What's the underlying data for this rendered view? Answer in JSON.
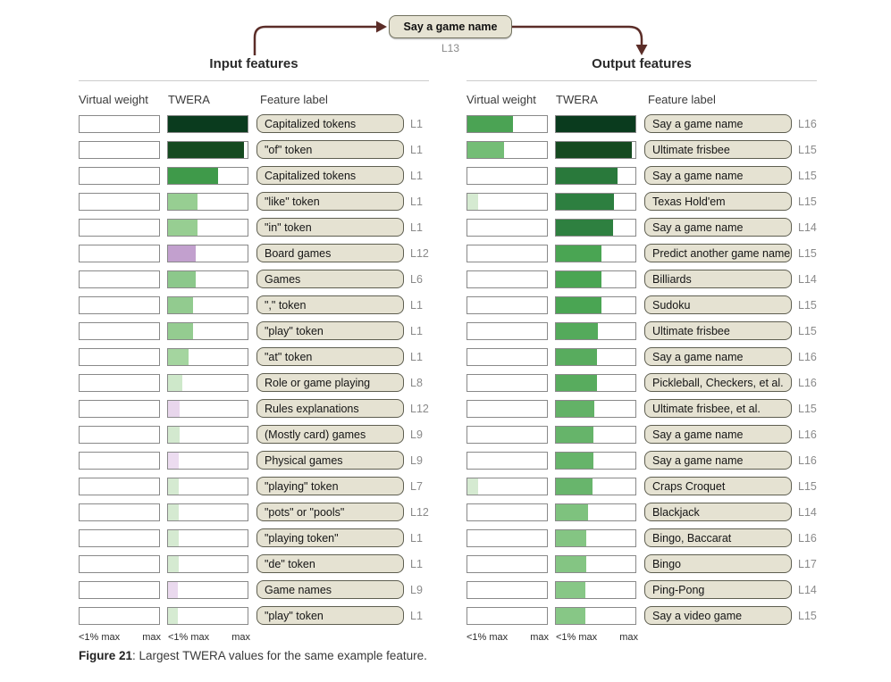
{
  "node": {
    "label": "Say a game name",
    "layer": "L13"
  },
  "headers": {
    "virtual_weight": "Virtual weight",
    "twera": "TWERA",
    "feature_label": "Feature label"
  },
  "axis": {
    "min": "<1% max",
    "max": "max"
  },
  "caption": {
    "bold": "Figure 21",
    "text": ": Largest TWERA values for the same example feature."
  },
  "colors": {
    "arrow": "#5b2d28",
    "node_bg": "#e6e3d3",
    "node_border": "#70705e",
    "bar_border": "#898989",
    "box_bg": "#e5e2d2",
    "box_border": "#5e5e50",
    "rule_color": "#cccccc"
  },
  "chart_data": [
    {
      "type": "bar",
      "title": "Input features",
      "bar_columns": [
        "virtual_weight",
        "twera"
      ],
      "x_axis": {
        "min_label": "<1% max",
        "max_label": "max"
      },
      "rows": [
        {
          "label": "Capitalized tokens",
          "layer": "L1",
          "virtual_weight": 0,
          "twera": 1.0,
          "twera_color": "#0a3b1e"
        },
        {
          "label": "\"of\" token",
          "layer": "L1",
          "virtual_weight": 0,
          "twera": 0.95,
          "twera_color": "#154a20"
        },
        {
          "label": "Capitalized tokens",
          "layer": "L1",
          "virtual_weight": 0,
          "twera": 0.63,
          "twera_color": "#3f9a4a"
        },
        {
          "label": "\"like\" token",
          "layer": "L1",
          "virtual_weight": 0,
          "twera": 0.37,
          "twera_color": "#97ce92"
        },
        {
          "label": "\"in\" token",
          "layer": "L1",
          "virtual_weight": 0,
          "twera": 0.37,
          "twera_color": "#97ce92"
        },
        {
          "label": "Board games",
          "layer": "L12",
          "virtual_weight": 0,
          "twera": 0.35,
          "twera_color": "#c2a0ce"
        },
        {
          "label": "Games",
          "layer": "L6",
          "virtual_weight": 0,
          "twera": 0.35,
          "twera_color": "#8cc88b"
        },
        {
          "label": "\",\" token",
          "layer": "L1",
          "virtual_weight": 0,
          "twera": 0.32,
          "twera_color": "#92cb8f"
        },
        {
          "label": "\"play\" token",
          "layer": "L1",
          "virtual_weight": 0,
          "twera": 0.31,
          "twera_color": "#94cc90"
        },
        {
          "label": "\"at\" token",
          "layer": "L1",
          "virtual_weight": 0,
          "twera": 0.26,
          "twera_color": "#a4d59f"
        },
        {
          "label": "Role or game playing",
          "layer": "L8",
          "virtual_weight": 0,
          "twera": 0.18,
          "twera_color": "#cee8ca"
        },
        {
          "label": "Rules explanations",
          "layer": "L12",
          "virtual_weight": 0,
          "twera": 0.15,
          "twera_color": "#e8d6ec"
        },
        {
          "label": "(Mostly card) games",
          "layer": "L9",
          "virtual_weight": 0,
          "twera": 0.15,
          "twera_color": "#d3e9cf"
        },
        {
          "label": "Physical games",
          "layer": "L9",
          "virtual_weight": 0,
          "twera": 0.13,
          "twera_color": "#ecdcf0"
        },
        {
          "label": "\"playing\" token",
          "layer": "L7",
          "virtual_weight": 0,
          "twera": 0.13,
          "twera_color": "#d5ead1"
        },
        {
          "label": "\"pots\" or \"pools\"",
          "layer": "L12",
          "virtual_weight": 0,
          "twera": 0.13,
          "twera_color": "#d5ead1"
        },
        {
          "label": "\"playing token\"",
          "layer": "L1",
          "virtual_weight": 0,
          "twera": 0.13,
          "twera_color": "#d5ead1"
        },
        {
          "label": "\"de\" token",
          "layer": "L1",
          "virtual_weight": 0,
          "twera": 0.13,
          "twera_color": "#d5ead1"
        },
        {
          "label": "Game names",
          "layer": "L9",
          "virtual_weight": 0,
          "twera": 0.12,
          "twera_color": "#ead9ee"
        },
        {
          "label": "\"play\" token",
          "layer": "L1",
          "virtual_weight": 0,
          "twera": 0.12,
          "twera_color": "#d6ebd2"
        }
      ]
    },
    {
      "type": "bar",
      "title": "Output features",
      "bar_columns": [
        "virtual_weight",
        "twera"
      ],
      "x_axis": {
        "min_label": "<1% max",
        "max_label": "max"
      },
      "rows": [
        {
          "label": "Say a game name",
          "layer": "L16",
          "virtual_weight": 0.57,
          "virtual_weight_color": "#4ba354",
          "twera": 1.0,
          "twera_color": "#0a3b1e"
        },
        {
          "label": "Ultimate frisbee",
          "layer": "L15",
          "virtual_weight": 0.46,
          "virtual_weight_color": "#74bd76",
          "twera": 0.95,
          "twera_color": "#154a20"
        },
        {
          "label": "Say a game name",
          "layer": "L15",
          "virtual_weight": 0,
          "twera": 0.77,
          "twera_color": "#29793b"
        },
        {
          "label": "Texas Hold'em",
          "layer": "L15",
          "virtual_weight": 0.13,
          "virtual_weight_color": "#d5ead1",
          "twera": 0.73,
          "twera_color": "#2d7f40"
        },
        {
          "label": "Say a game name",
          "layer": "L14",
          "virtual_weight": 0,
          "twera": 0.72,
          "twera_color": "#2e8040"
        },
        {
          "label": "Predict another game name",
          "layer": "L15",
          "virtual_weight": 0,
          "twera": 0.57,
          "twera_color": "#4aa553"
        },
        {
          "label": "Billiards",
          "layer": "L14",
          "virtual_weight": 0,
          "twera": 0.57,
          "twera_color": "#4aa553"
        },
        {
          "label": "Sudoku",
          "layer": "L15",
          "virtual_weight": 0,
          "twera": 0.57,
          "twera_color": "#4aa553"
        },
        {
          "label": "Ultimate frisbee",
          "layer": "L15",
          "virtual_weight": 0,
          "twera": 0.53,
          "twera_color": "#54aa5b"
        },
        {
          "label": "Say a game name",
          "layer": "L16",
          "virtual_weight": 0,
          "twera": 0.52,
          "twera_color": "#58ac5e"
        },
        {
          "label": "Pickleball, Checkers, et al.",
          "layer": "L16",
          "virtual_weight": 0,
          "twera": 0.52,
          "twera_color": "#58ac5e"
        },
        {
          "label": "Ultimate frisbee, et al.",
          "layer": "L15",
          "virtual_weight": 0,
          "twera": 0.48,
          "twera_color": "#63b267"
        },
        {
          "label": "Say a game name",
          "layer": "L16",
          "virtual_weight": 0,
          "twera": 0.47,
          "twera_color": "#66b46a"
        },
        {
          "label": "Say a game name",
          "layer": "L16",
          "virtual_weight": 0,
          "twera": 0.47,
          "twera_color": "#66b46a"
        },
        {
          "label": "Craps Croquet",
          "layer": "L15",
          "virtual_weight": 0.13,
          "virtual_weight_color": "#d5ead1",
          "twera": 0.46,
          "twera_color": "#68b56c"
        },
        {
          "label": "Blackjack",
          "layer": "L14",
          "virtual_weight": 0,
          "twera": 0.4,
          "twera_color": "#7ec27e"
        },
        {
          "label": "Bingo, Baccarat",
          "layer": "L16",
          "virtual_weight": 0,
          "twera": 0.38,
          "twera_color": "#84c583"
        },
        {
          "label": "Bingo",
          "layer": "L17",
          "virtual_weight": 0,
          "twera": 0.38,
          "twera_color": "#84c583"
        },
        {
          "label": "Ping-Pong",
          "layer": "L14",
          "virtual_weight": 0,
          "twera": 0.37,
          "twera_color": "#87c786"
        },
        {
          "label": "Say a video game",
          "layer": "L15",
          "virtual_weight": 0,
          "twera": 0.37,
          "twera_color": "#87c786"
        }
      ]
    }
  ]
}
